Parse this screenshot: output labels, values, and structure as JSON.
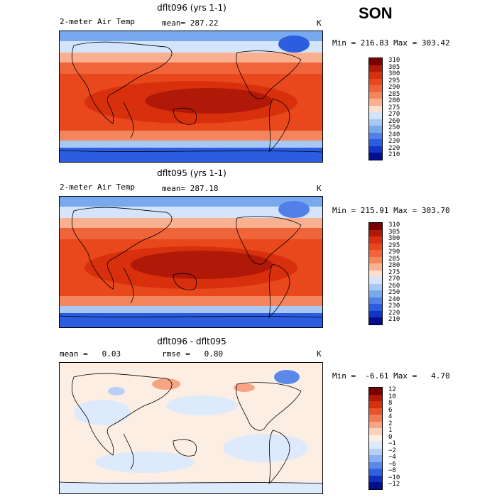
{
  "season": "SON",
  "panels": [
    {
      "title": "dflt096 (yrs 1-1)",
      "left_label": "2-meter Air Temp",
      "mid_label": "mean= 287.22",
      "unit": "K",
      "minmax": "Min = 216.83 Max = 303.42",
      "colorbar_labels": [
        "310",
        "305",
        "300",
        "295",
        "290",
        "285",
        "280",
        "275",
        "270",
        "260",
        "250",
        "240",
        "230",
        "220",
        "210"
      ]
    },
    {
      "title": "dflt095 (yrs 1-1)",
      "left_label": "2-meter Air Temp",
      "mid_label": "mean= 287.18",
      "unit": "K",
      "minmax": "Min = 215.91 Max = 303.70",
      "colorbar_labels": [
        "310",
        "305",
        "300",
        "295",
        "290",
        "285",
        "280",
        "275",
        "270",
        "260",
        "250",
        "240",
        "230",
        "220",
        "210"
      ]
    },
    {
      "title": "dflt096 - dflt095",
      "left_label": "mean =   0.03",
      "mid_label": "rmse =   0.80",
      "unit": "K",
      "minmax": "Min =  -6.61 Max =   4.70",
      "colorbar_labels": [
        "12",
        "10",
        "8",
        "6",
        "4",
        "2",
        "1",
        "0",
        "−1",
        "−2",
        "−4",
        "−6",
        "−8",
        "−10",
        "−12"
      ]
    }
  ],
  "colors": {
    "temp_scale": [
      "#7a0000",
      "#b01808",
      "#d8300c",
      "#e8481c",
      "#f0643a",
      "#f4865e",
      "#f8b090",
      "#fbe0d0",
      "#d4e4fa",
      "#a8c8f4",
      "#78a8ee",
      "#5080e8",
      "#2c5ce0",
      "#1034c8",
      "#00108c"
    ],
    "diff_scale": [
      "#7a0000",
      "#b01808",
      "#d8300c",
      "#e8542a",
      "#f07a52",
      "#f6a484",
      "#fbd0bc",
      "#fdeee4",
      "#dceafb",
      "#b8d0f6",
      "#8aaef0",
      "#5c88ea",
      "#3060e0",
      "#1030c0",
      "#00108c"
    ],
    "coastline": "#000000"
  }
}
